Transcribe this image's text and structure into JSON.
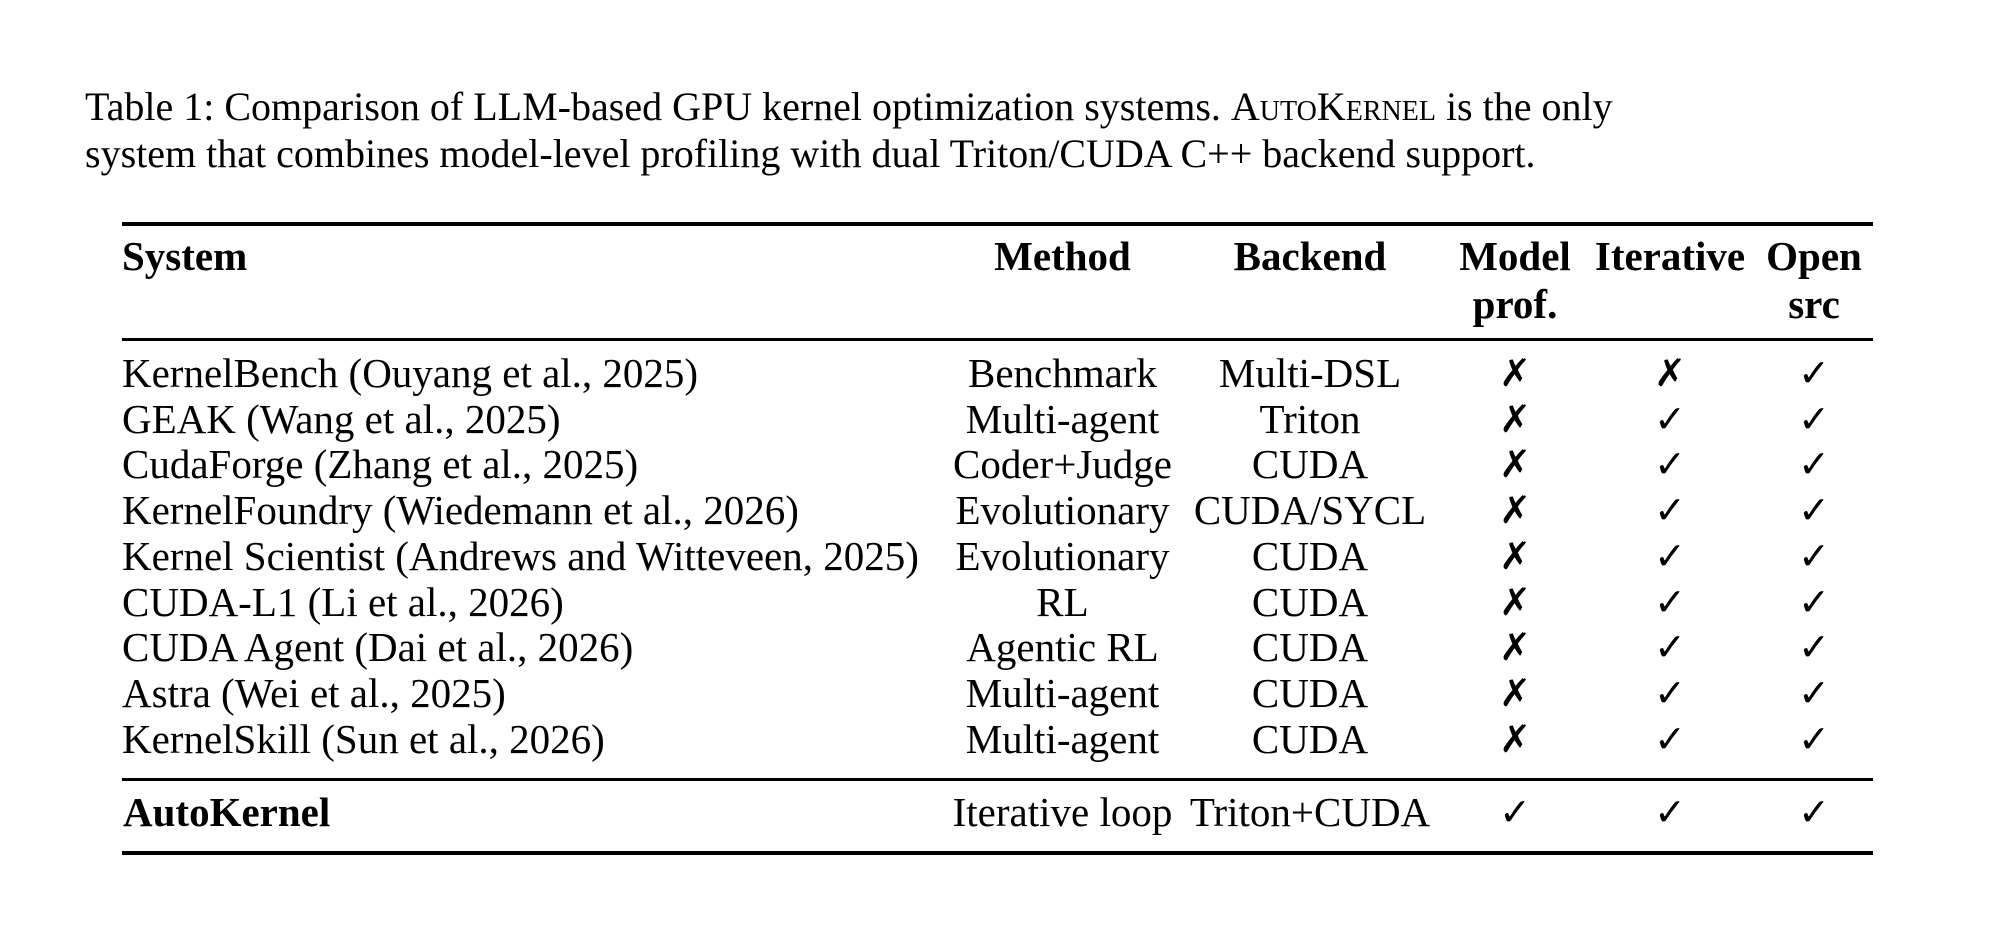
{
  "caption": {
    "line1_pre": "Table 1: Comparison of LLM-based GPU kernel optimization systems. ",
    "smallcaps_word": "AutoKernel",
    "line1_post": " is the only",
    "line2": "system that combines model-level profiling with dual Triton/CUDA C++ backend support."
  },
  "table": {
    "columns": [
      {
        "label": "System",
        "label2": ""
      },
      {
        "label": "Method",
        "label2": ""
      },
      {
        "label": "Backend",
        "label2": ""
      },
      {
        "label": "Model",
        "label2": "prof."
      },
      {
        "label": "Iterative",
        "label2": ""
      },
      {
        "label": "Open",
        "label2": "src"
      }
    ],
    "rows": [
      {
        "system": "KernelBench (Ouyang et al., 2025)",
        "method": "Benchmark",
        "backend": "Multi-DSL",
        "model_prof": "✗",
        "iterative": "✗",
        "open_src": "✓"
      },
      {
        "system": "GEAK (Wang et al., 2025)",
        "method": "Multi-agent",
        "backend": "Triton",
        "model_prof": "✗",
        "iterative": "✓",
        "open_src": "✓"
      },
      {
        "system": "CudaForge (Zhang et al., 2025)",
        "method": "Coder+Judge",
        "backend": "CUDA",
        "model_prof": "✗",
        "iterative": "✓",
        "open_src": "✓"
      },
      {
        "system": "KernelFoundry (Wiedemann et al., 2026)",
        "method": "Evolutionary",
        "backend": "CUDA/SYCL",
        "model_prof": "✗",
        "iterative": "✓",
        "open_src": "✓"
      },
      {
        "system": "Kernel Scientist (Andrews and Witteveen, 2025)",
        "method": "Evolutionary",
        "backend": "CUDA",
        "model_prof": "✗",
        "iterative": "✓",
        "open_src": "✓"
      },
      {
        "system": "CUDA-L1 (Li et al., 2026)",
        "method": "RL",
        "backend": "CUDA",
        "model_prof": "✗",
        "iterative": "✓",
        "open_src": "✓"
      },
      {
        "system": "CUDA Agent (Dai et al., 2026)",
        "method": "Agentic RL",
        "backend": "CUDA",
        "model_prof": "✗",
        "iterative": "✓",
        "open_src": "✓"
      },
      {
        "system": "Astra (Wei et al., 2025)",
        "method": "Multi-agent",
        "backend": "CUDA",
        "model_prof": "✗",
        "iterative": "✓",
        "open_src": "✓"
      },
      {
        "system": "KernelSkill (Sun et al., 2026)",
        "method": "Multi-agent",
        "backend": "CUDA",
        "model_prof": "✗",
        "iterative": "✓",
        "open_src": "✓"
      }
    ],
    "footer_row": {
      "system": "AutoKernel",
      "method": "Iterative loop",
      "backend": "Triton+CUDA",
      "model_prof": "✓",
      "iterative": "✓",
      "open_src": "✓"
    }
  }
}
